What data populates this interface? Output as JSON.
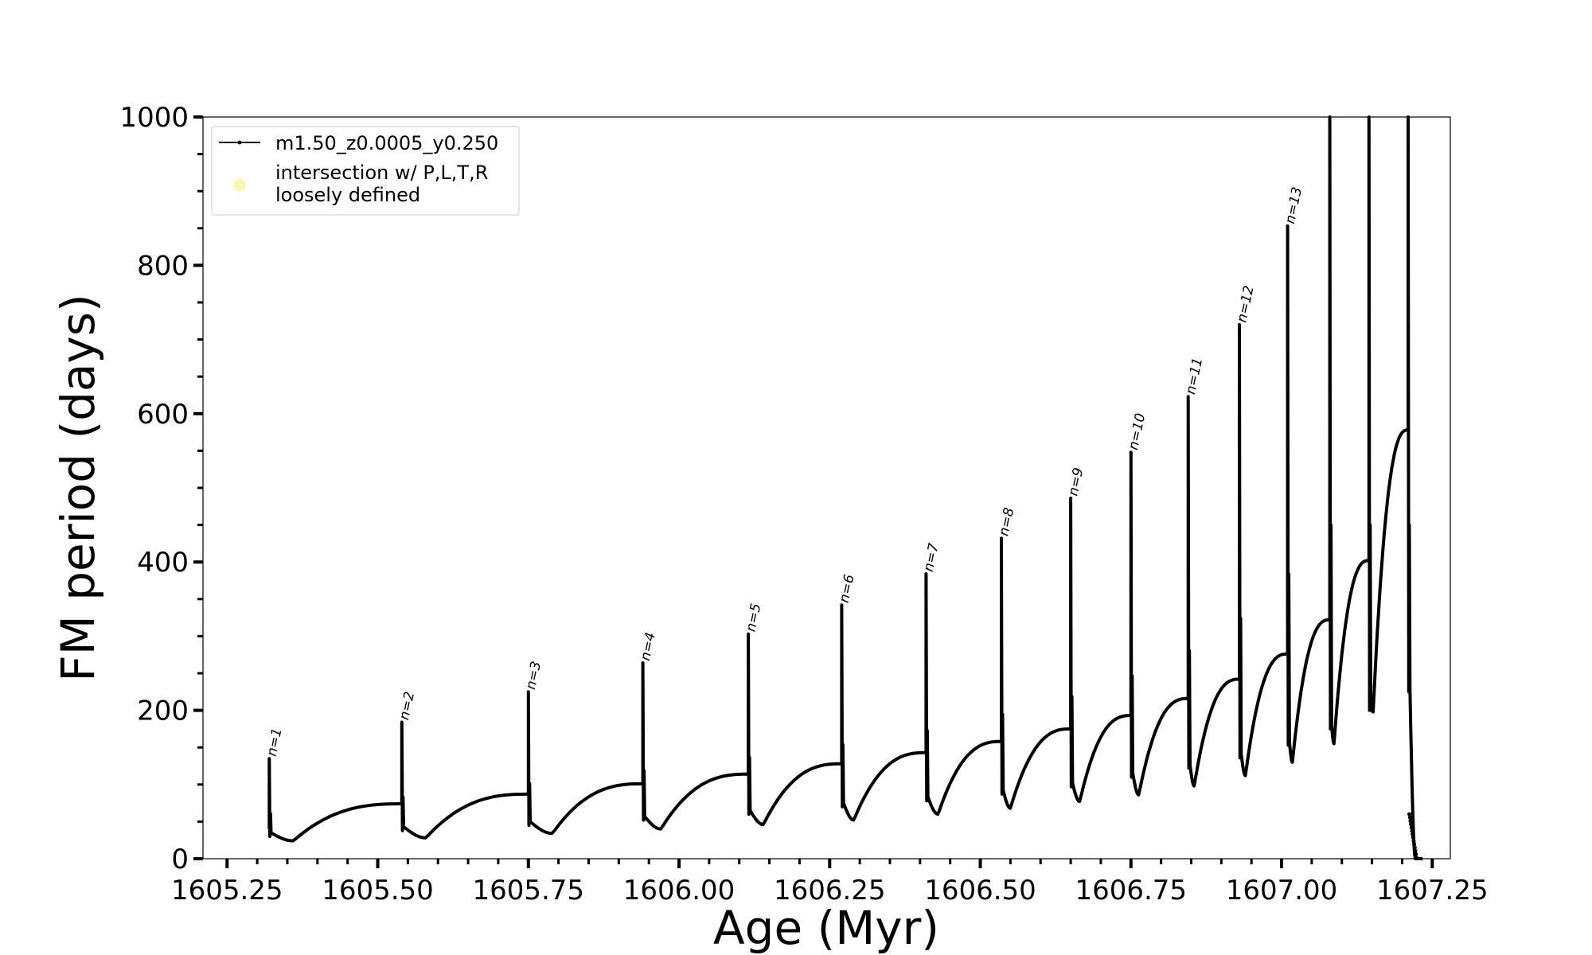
{
  "chart_data": {
    "type": "line",
    "title": "",
    "xlabel": "Age (Myr)",
    "ylabel": "FM period (days)",
    "xlim": [
      1605.21,
      1607.28
    ],
    "ylim": [
      0,
      1000
    ],
    "x_ticks": [
      1605.25,
      1605.5,
      1605.75,
      1606.0,
      1606.25,
      1606.5,
      1606.75,
      1607.0,
      1607.25
    ],
    "x_tick_labels": [
      "1605.25",
      "1605.50",
      "1605.75",
      "1606.00",
      "1606.25",
      "1606.50",
      "1606.75",
      "1607.00",
      "1607.25"
    ],
    "y_ticks": [
      0,
      200,
      400,
      600,
      800,
      1000
    ],
    "y_tick_labels": [
      "0",
      "200",
      "400",
      "600",
      "800",
      "1000"
    ],
    "y_minor_step": 50,
    "x_minor_step": 0.05,
    "grid": false,
    "legend": {
      "position": "top-left",
      "entries": [
        {
          "label": "m1.50_z0.0005_y0.250",
          "marker": "line-dot",
          "color": "#000000"
        },
        {
          "label": "intersection w/ P,L,T,R",
          "label2": "loosely defined",
          "marker": "circle",
          "color": "#fdf7b0"
        }
      ]
    },
    "series": [
      {
        "name": "m1.50_z0.0005_y0.250",
        "color": "#000000",
        "pulses": [
          {
            "label": "n=1",
            "age": 1605.32,
            "peak": 135,
            "low": 30,
            "post_min": 24,
            "post_min_age": 1605.36,
            "pre_level": 0
          },
          {
            "label": "n=2",
            "age": 1605.54,
            "peak": 184,
            "low": 38,
            "post_min": 28,
            "post_min_age": 1605.58,
            "pre_level": 74
          },
          {
            "label": "n=3",
            "age": 1605.75,
            "peak": 225,
            "low": 45,
            "post_min": 34,
            "post_min_age": 1605.79,
            "pre_level": 87
          },
          {
            "label": "n=4",
            "age": 1605.94,
            "peak": 264,
            "low": 52,
            "post_min": 40,
            "post_min_age": 1605.97,
            "pre_level": 101
          },
          {
            "label": "n=5",
            "age": 1606.115,
            "peak": 303,
            "low": 60,
            "post_min": 46,
            "post_min_age": 1606.14,
            "pre_level": 114
          },
          {
            "label": "n=6",
            "age": 1606.27,
            "peak": 342,
            "low": 70,
            "post_min": 52,
            "post_min_age": 1606.29,
            "pre_level": 128
          },
          {
            "label": "n=7",
            "age": 1606.41,
            "peak": 384,
            "low": 78,
            "post_min": 60,
            "post_min_age": 1606.43,
            "pre_level": 143
          },
          {
            "label": "n=8",
            "age": 1606.535,
            "peak": 432,
            "low": 87,
            "post_min": 68,
            "post_min_age": 1606.55,
            "pre_level": 158
          },
          {
            "label": "n=9",
            "age": 1606.65,
            "peak": 486,
            "low": 97,
            "post_min": 77,
            "post_min_age": 1606.665,
            "pre_level": 175
          },
          {
            "label": "n=10",
            "age": 1606.75,
            "peak": 548,
            "low": 110,
            "post_min": 86,
            "post_min_age": 1606.763,
            "pre_level": 193
          },
          {
            "label": "n=11",
            "age": 1606.845,
            "peak": 623,
            "low": 122,
            "post_min": 98,
            "post_min_age": 1606.855,
            "pre_level": 216
          },
          {
            "label": "n=12",
            "age": 1606.93,
            "peak": 720,
            "low": 136,
            "post_min": 112,
            "post_min_age": 1606.94,
            "pre_level": 242
          },
          {
            "label": "n=13",
            "age": 1607.01,
            "peak": 853,
            "low": 153,
            "post_min": 130,
            "post_min_age": 1607.018,
            "pre_level": 276
          },
          {
            "label": "",
            "age": 1607.08,
            "peak": 1000,
            "low": 175,
            "post_min": 155,
            "post_min_age": 1607.087,
            "pre_level": 322
          },
          {
            "label": "",
            "age": 1607.145,
            "peak": 1000,
            "low": 200,
            "post_min": 198,
            "post_min_age": 1607.152,
            "pre_level": 402
          },
          {
            "label": "",
            "age": 1607.21,
            "peak": 1000,
            "low": 225,
            "post_min": 0,
            "post_min_age": 1607.222,
            "pre_level": 578
          }
        ]
      }
    ]
  }
}
